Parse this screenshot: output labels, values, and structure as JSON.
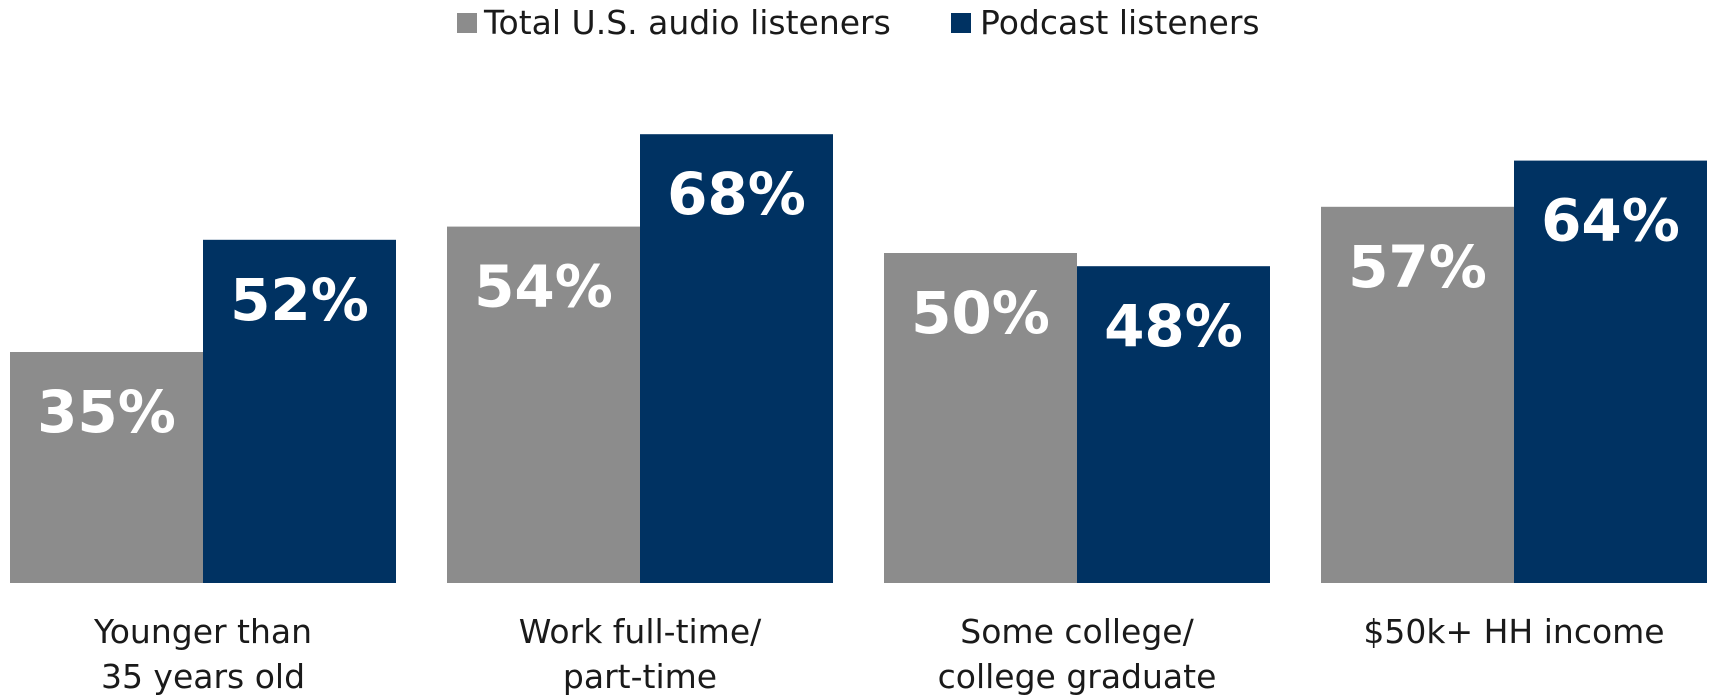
{
  "chart_data": {
    "type": "bar",
    "categories": [
      [
        "Younger than",
        "35 years old"
      ],
      [
        "Work full-time/",
        "part-time"
      ],
      [
        "Some college/",
        "college graduate"
      ],
      [
        "$50k+ HH income"
      ]
    ],
    "series": [
      {
        "name": "Total U.S. audio listeners",
        "values": [
          35,
          54,
          50,
          57
        ],
        "labels": [
          "35%",
          "54%",
          "50%",
          "57%"
        ],
        "color": "#8c8c8c"
      },
      {
        "name": "Podcast listeners",
        "values": [
          52,
          68,
          48,
          64
        ],
        "labels": [
          "52%",
          "68%",
          "48%",
          "64%"
        ],
        "color": "#003262"
      }
    ],
    "ylim": [
      0,
      100
    ],
    "grid": false,
    "legend_position": "top-center"
  }
}
